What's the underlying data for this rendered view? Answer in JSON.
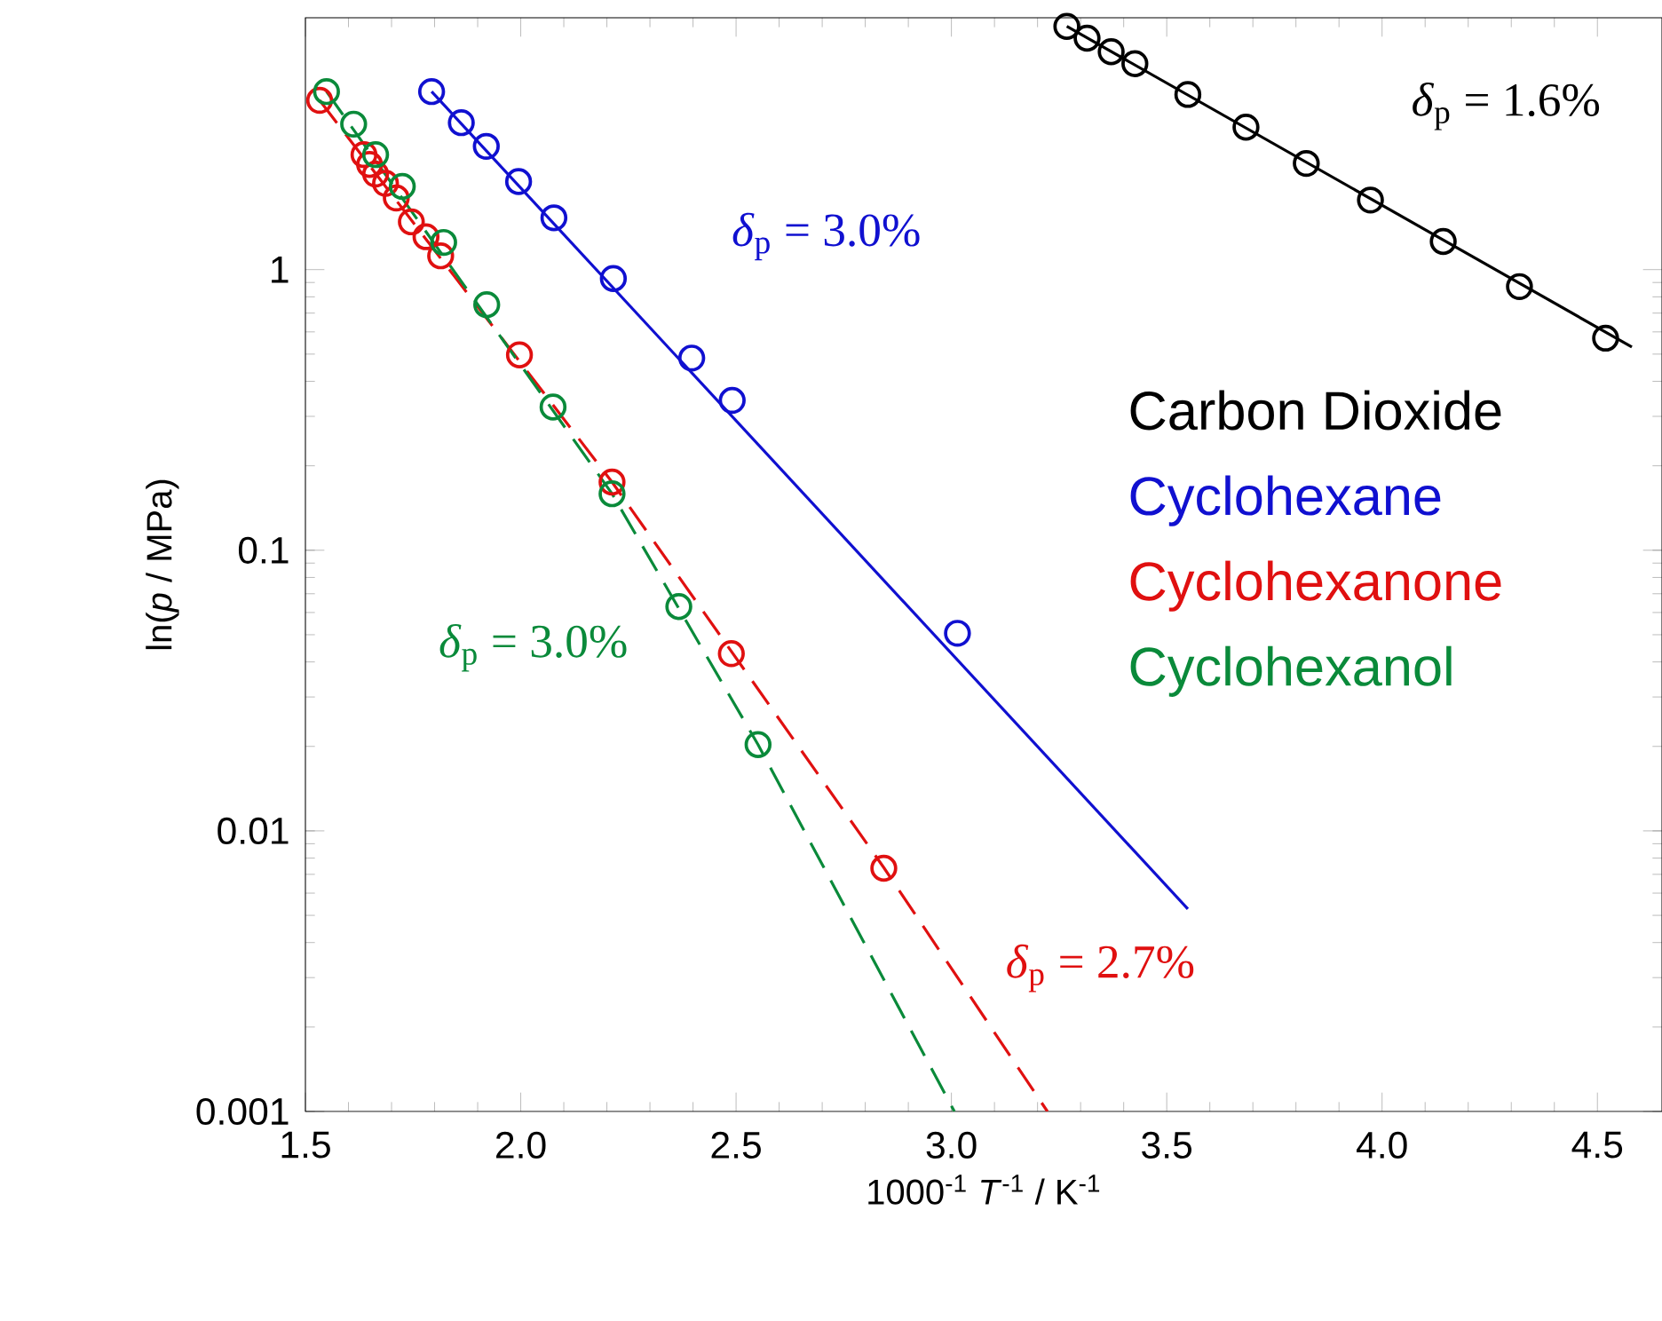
{
  "chart_data": {
    "type": "scatter",
    "xlabel": "1000$^{-1}$ *T*$^{-1}$ / K$^{-1}$",
    "ylabel": "ln(*p* / MPa)",
    "xlim": [
      1.5,
      4.65
    ],
    "ylim": [
      0.001,
      7.9
    ],
    "log": "y",
    "xticks": [
      1.5,
      {
        "value": 2,
        "label": "2.0"
      },
      2.5,
      {
        "value": 3,
        "label": "3.0"
      },
      3.5,
      {
        "value": 4,
        "label": "4.0"
      },
      4.5
    ],
    "yticks": [
      0.001,
      0.01,
      0.1,
      1
    ],
    "legend": "right",
    "grid": false,
    "series": [
      {
        "name": "Carbon Dioxide",
        "marker": "circle",
        "color": "#000000",
        "x": [
          3.268,
          3.315,
          3.371,
          3.426,
          3.549,
          3.684,
          3.824,
          3.973,
          4.142,
          4.319,
          4.519
        ],
        "values": [
          7.36,
          6.68,
          5.98,
          5.42,
          4.21,
          3.22,
          2.39,
          1.77,
          1.26,
          0.87,
          0.57
        ]
      },
      {
        "name": "Cyclohexane",
        "marker": "circle",
        "color": "#1010d0",
        "x": [
          1.793,
          1.862,
          1.92,
          1.995,
          2.077,
          2.215,
          2.397,
          2.491,
          3.014
        ],
        "values": [
          4.31,
          3.34,
          2.75,
          2.06,
          1.53,
          0.93,
          0.484,
          0.342,
          0.0506
        ]
      },
      {
        "name": "Cyclohexanone",
        "marker": "circle",
        "color": "#e01010",
        "x": [
          1.533,
          1.636,
          1.649,
          1.663,
          1.686,
          1.711,
          1.746,
          1.78,
          1.814,
          1.997,
          2.212,
          2.489,
          2.843
        ],
        "values": [
          4.01,
          2.57,
          2.37,
          2.19,
          2.03,
          1.8,
          1.48,
          1.31,
          1.12,
          0.497,
          0.175,
          0.0428,
          0.00736
        ]
      },
      {
        "name": "Cyclohexanol",
        "marker": "circle",
        "color": "#0a8a3a",
        "x": [
          1.549,
          1.612,
          1.663,
          1.725,
          1.821,
          1.921,
          2.075,
          2.212,
          2.367,
          2.551
        ],
        "values": [
          4.31,
          3.3,
          2.57,
          1.98,
          1.25,
          0.75,
          0.324,
          0.159,
          0.063,
          0.0203
        ]
      },
      {
        "type": "line",
        "marker": "none",
        "color": "#000000",
        "line_style": "solid",
        "x": [
          3.268,
          4.58
        ],
        "values": [
          7.36,
          0.53
        ]
      },
      {
        "type": "line",
        "marker": "none",
        "color": "#1010d0",
        "line_style": "solid",
        "x": [
          1.793,
          3.549
        ],
        "values": [
          4.31,
          0.00527
        ]
      },
      {
        "type": "line",
        "marker": "none",
        "color": "#e01010",
        "line_style": "dashed",
        "x": [
          1.533,
          2.212,
          2.843,
          3.223
        ],
        "values": [
          4.01,
          0.175,
          0.0074,
          0.001
        ]
      },
      {
        "type": "line",
        "marker": "none",
        "color": "#0a8a3a",
        "line_style": "dashed",
        "x": [
          1.549,
          2.212,
          2.551,
          3.007
        ],
        "values": [
          4.31,
          0.159,
          0.0203,
          0.001
        ]
      }
    ],
    "annotations": [
      "*δ*$_{p}$ = 1.6%",
      "*δ*$_{p}$ = 3.0%",
      "*δ*$_{p}$ = 2.7%",
      "*δ*$_{p}$ = 3.0%"
    ]
  }
}
